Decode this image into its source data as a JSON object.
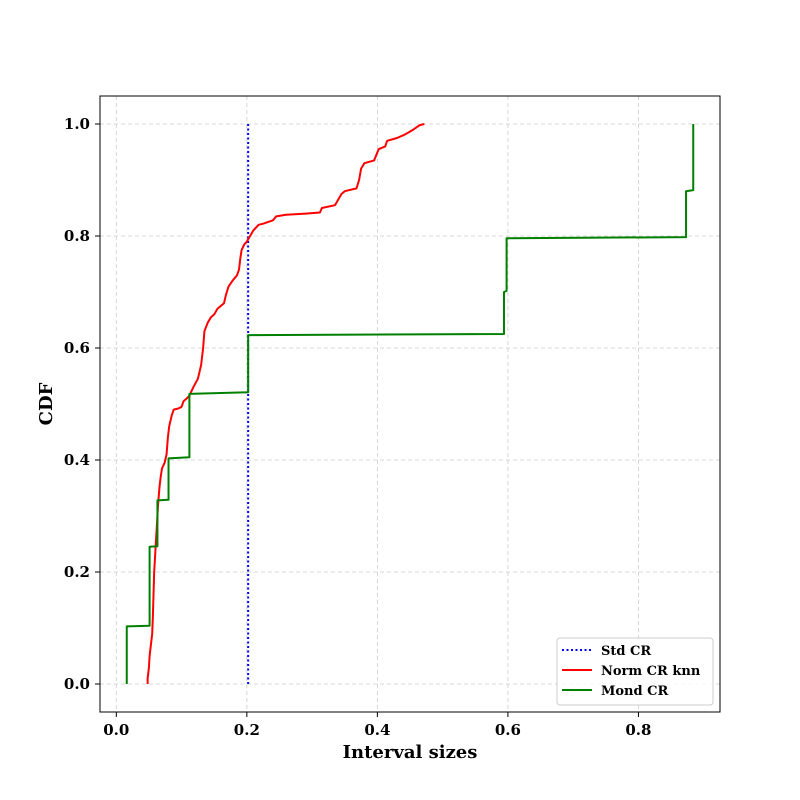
{
  "chart_data": {
    "type": "line",
    "xlabel": "Interval sizes",
    "ylabel": "CDF",
    "xlim": [
      -0.025,
      0.925
    ],
    "ylim": [
      -0.05,
      1.05
    ],
    "xticks": [
      0.0,
      0.2,
      0.4,
      0.6,
      0.8
    ],
    "xtick_labels": [
      "0.0",
      "0.2",
      "0.4",
      "0.6",
      "0.8"
    ],
    "yticks": [
      0.0,
      0.2,
      0.4,
      0.6,
      0.8,
      1.0
    ],
    "ytick_labels": [
      "0.0",
      "0.2",
      "0.4",
      "0.6",
      "0.8",
      "1.0"
    ],
    "grid": true,
    "legend_position": "lower-right",
    "series": [
      {
        "name": "Std CR",
        "color": "#0000ff",
        "style": "dotted",
        "points": [
          [
            0.202,
            0.0
          ],
          [
            0.202,
            1.0
          ]
        ]
      },
      {
        "name": "Norm CR knn",
        "color": "#ff0000",
        "style": "solid",
        "points": [
          [
            0.048,
            0.0
          ],
          [
            0.048,
            0.01
          ],
          [
            0.05,
            0.03
          ],
          [
            0.051,
            0.05
          ],
          [
            0.053,
            0.07
          ],
          [
            0.055,
            0.09
          ],
          [
            0.056,
            0.12
          ],
          [
            0.057,
            0.16
          ],
          [
            0.058,
            0.2
          ],
          [
            0.06,
            0.24
          ],
          [
            0.062,
            0.28
          ],
          [
            0.064,
            0.32
          ],
          [
            0.066,
            0.35
          ],
          [
            0.068,
            0.37
          ],
          [
            0.07,
            0.385
          ],
          [
            0.074,
            0.395
          ],
          [
            0.077,
            0.41
          ],
          [
            0.079,
            0.44
          ],
          [
            0.081,
            0.46
          ],
          [
            0.085,
            0.48
          ],
          [
            0.088,
            0.49
          ],
          [
            0.095,
            0.492
          ],
          [
            0.1,
            0.495
          ],
          [
            0.103,
            0.505
          ],
          [
            0.108,
            0.51
          ],
          [
            0.112,
            0.515
          ],
          [
            0.118,
            0.53
          ],
          [
            0.125,
            0.545
          ],
          [
            0.13,
            0.57
          ],
          [
            0.133,
            0.6
          ],
          [
            0.135,
            0.63
          ],
          [
            0.14,
            0.645
          ],
          [
            0.145,
            0.655
          ],
          [
            0.15,
            0.66
          ],
          [
            0.155,
            0.67
          ],
          [
            0.16,
            0.675
          ],
          [
            0.165,
            0.68
          ],
          [
            0.168,
            0.695
          ],
          [
            0.172,
            0.71
          ],
          [
            0.178,
            0.72
          ],
          [
            0.185,
            0.73
          ],
          [
            0.188,
            0.74
          ],
          [
            0.19,
            0.76
          ],
          [
            0.192,
            0.775
          ],
          [
            0.196,
            0.785
          ],
          [
            0.2,
            0.79
          ],
          [
            0.205,
            0.8
          ],
          [
            0.21,
            0.81
          ],
          [
            0.218,
            0.82
          ],
          [
            0.225,
            0.822
          ],
          [
            0.24,
            0.828
          ],
          [
            0.245,
            0.835
          ],
          [
            0.26,
            0.838
          ],
          [
            0.29,
            0.84
          ],
          [
            0.312,
            0.842
          ],
          [
            0.315,
            0.85
          ],
          [
            0.335,
            0.855
          ],
          [
            0.34,
            0.865
          ],
          [
            0.345,
            0.875
          ],
          [
            0.35,
            0.88
          ],
          [
            0.368,
            0.885
          ],
          [
            0.372,
            0.9
          ],
          [
            0.375,
            0.92
          ],
          [
            0.38,
            0.93
          ],
          [
            0.395,
            0.935
          ],
          [
            0.402,
            0.955
          ],
          [
            0.412,
            0.96
          ],
          [
            0.415,
            0.97
          ],
          [
            0.43,
            0.975
          ],
          [
            0.44,
            0.98
          ],
          [
            0.448,
            0.985
          ],
          [
            0.455,
            0.99
          ],
          [
            0.465,
            0.998
          ],
          [
            0.472,
            1.0
          ]
        ]
      },
      {
        "name": "Mond CR",
        "color": "#008000",
        "style": "step",
        "points": [
          [
            0.016,
            0.0
          ],
          [
            0.016,
            0.103
          ],
          [
            0.051,
            0.104
          ],
          [
            0.051,
            0.245
          ],
          [
            0.063,
            0.246
          ],
          [
            0.063,
            0.328
          ],
          [
            0.08,
            0.329
          ],
          [
            0.08,
            0.403
          ],
          [
            0.112,
            0.405
          ],
          [
            0.112,
            0.518
          ],
          [
            0.202,
            0.521
          ],
          [
            0.202,
            0.623
          ],
          [
            0.594,
            0.625
          ],
          [
            0.594,
            0.7
          ],
          [
            0.598,
            0.702
          ],
          [
            0.598,
            0.796
          ],
          [
            0.873,
            0.798
          ],
          [
            0.873,
            0.88
          ],
          [
            0.884,
            0.882
          ],
          [
            0.884,
            1.0
          ]
        ]
      }
    ]
  }
}
